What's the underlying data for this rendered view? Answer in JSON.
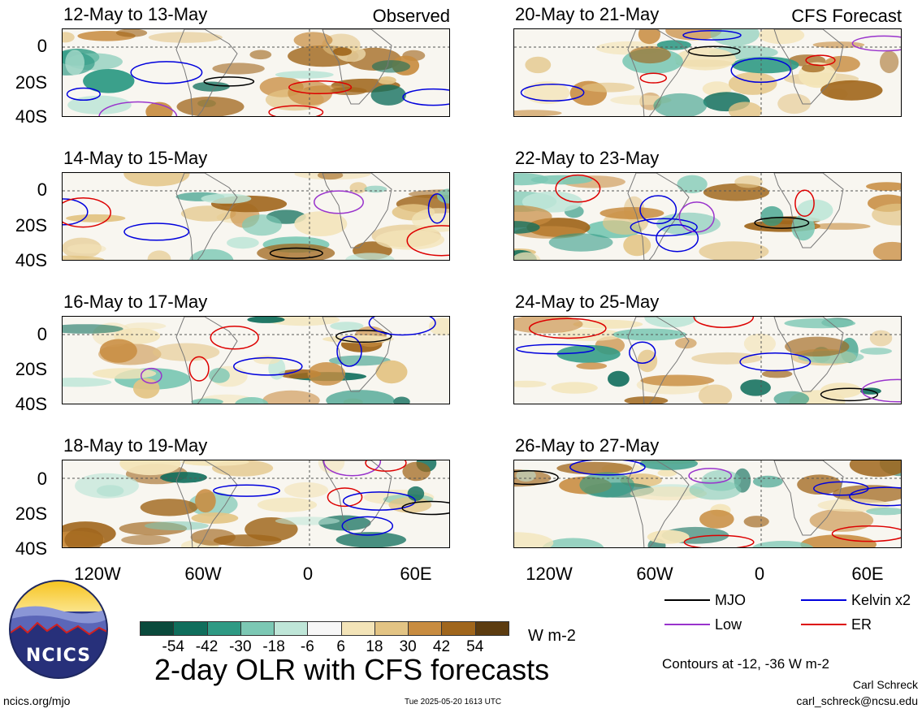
{
  "panels": [
    {
      "date_range": "12-May to 13-May",
      "source": "Observed"
    },
    {
      "date_range": "20-May to 21-May",
      "source": "CFS Forecast"
    },
    {
      "date_range": "14-May to 15-May",
      "source": ""
    },
    {
      "date_range": "22-May to 23-May",
      "source": ""
    },
    {
      "date_range": "16-May to 17-May",
      "source": ""
    },
    {
      "date_range": "24-May to 25-May",
      "source": ""
    },
    {
      "date_range": "18-May to 19-May",
      "source": ""
    },
    {
      "date_range": "26-May to 27-May",
      "source": ""
    }
  ],
  "lat_labels": [
    "0",
    "20S",
    "40S"
  ],
  "lon_labels": [
    "120W",
    "60W",
    "0",
    "60E"
  ],
  "colorbar": {
    "unit": "W m-2",
    "tick_labels": [
      "-54",
      "-42",
      "-30",
      "-18",
      "-6",
      "6",
      "18",
      "30",
      "42",
      "54"
    ],
    "colors": [
      "#0a4a3c",
      "#106e5c",
      "#2f9a84",
      "#7cc8b4",
      "#bfe6d8",
      "#f7f7f7",
      "#f3e4b8",
      "#e3c484",
      "#c88c40",
      "#a0661c",
      "#5c3c10"
    ]
  },
  "legend": {
    "mjo": {
      "label": "MJO",
      "color": "#000000"
    },
    "kelvin": {
      "label": "Kelvin x2",
      "color": "#0000dd"
    },
    "low": {
      "label": "Low",
      "color": "#9933cc"
    },
    "er": {
      "label": "ER",
      "color": "#dd0000"
    }
  },
  "contour_note": "Contours at -12, -36 W m-2",
  "main_title": "2-day OLR with CFS forecasts",
  "logo_text": "NCICS",
  "footer": {
    "url": "ncics.org/mjo",
    "timestamp": "Tue 2025-05-20 1613 UTC",
    "author": "Carl Schreck",
    "email": "carl_schreck@ncsu.edu"
  }
}
